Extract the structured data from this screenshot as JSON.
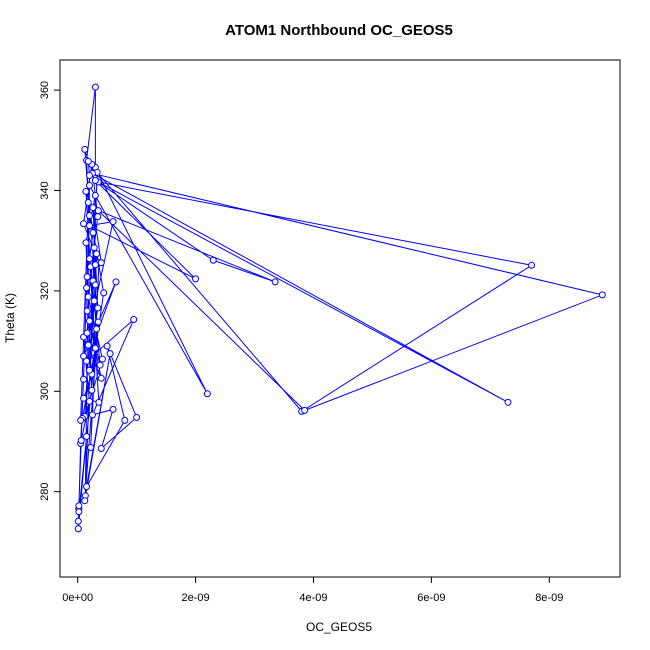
{
  "chart_data": {
    "type": "scatter",
    "title": "ATOM1 Northbound OC_GEOS5",
    "xlabel": "OC_GEOS5",
    "ylabel": "Theta (K)",
    "xlim": [
      -3e-10,
      9.2e-09
    ],
    "ylim": [
      263,
      366
    ],
    "x_ticks": [
      0,
      2e-09,
      4e-09,
      6e-09,
      8e-09
    ],
    "x_tick_labels": [
      "0e+00",
      "2e-09",
      "4e-09",
      "6e-09",
      "8e-09"
    ],
    "y_ticks": [
      280,
      300,
      320,
      340,
      360
    ],
    "y_tick_labels": [
      "280",
      "300",
      "320",
      "340",
      "360"
    ],
    "grid": false,
    "line_connected": true,
    "marker": "open-circle",
    "color": "#0000ff",
    "series": [
      {
        "values": [
          [
            1e-11,
            272.6
          ],
          [
            1e-11,
            274.1
          ],
          [
            2e-11,
            276.6
          ],
          [
            5e-11,
            289.6
          ],
          [
            1e-10,
            302.4
          ],
          [
            1.5e-10,
            320.6
          ],
          [
            2e-10,
            335.0
          ],
          [
            1.5e-10,
            346.0
          ],
          [
            3e-10,
            360.6
          ],
          [
            3e-10,
            344.6
          ],
          [
            2.2e-09,
            299.5
          ],
          [
            2e-10,
            341.0
          ],
          [
            1.3e-10,
            279.2
          ],
          [
            3.3e-10,
            343.6
          ],
          [
            3.8e-09,
            296.0
          ],
          [
            7.7e-09,
            325.1
          ],
          [
            3.5e-10,
            341.7
          ],
          [
            7.3e-09,
            297.8
          ],
          [
            2.5e-10,
            343.4
          ],
          [
            8.9e-09,
            319.2
          ],
          [
            3.85e-09,
            296.2
          ],
          [
            3.5e-10,
            336.0
          ],
          [
            3.35e-09,
            321.8
          ],
          [
            2.3e-09,
            326.1
          ],
          [
            3e-10,
            342.0
          ],
          [
            2e-09,
            322.4
          ],
          [
            2e-10,
            333.0
          ],
          [
            6e-10,
            333.8
          ],
          [
            1e-10,
            307.0
          ],
          [
            6.5e-10,
            321.8
          ],
          [
            1.5e-10,
            306.0
          ],
          [
            9.5e-10,
            314.3
          ],
          [
            2.5e-10,
            295.3
          ],
          [
            6e-10,
            296.4
          ],
          [
            4e-10,
            288.6
          ],
          [
            1e-09,
            294.8
          ],
          [
            5e-10,
            309.0
          ],
          [
            8e-10,
            294.2
          ],
          [
            1.5e-10,
            281.0
          ],
          [
            5.5e-10,
            307.5
          ],
          [
            1.2e-10,
            278.2
          ],
          [
            3.5e-10,
            313.8
          ],
          [
            2e-11,
            276.0
          ],
          [
            1e-11,
            272.6
          ],
          [
            1.5e-10,
            291.0
          ],
          [
            6e-11,
            290.2
          ],
          [
            2e-10,
            298.0
          ],
          [
            1e-10,
            310.8
          ],
          [
            4e-10,
            302.6
          ],
          [
            1.6e-10,
            316.0
          ],
          [
            2.8e-10,
            328.6
          ],
          [
            3.2e-10,
            312.4
          ],
          [
            2.2e-10,
            288.8
          ],
          [
            3.6e-10,
            325.6
          ],
          [
            1e-10,
            333.4
          ],
          [
            2.4e-10,
            345.2
          ],
          [
            3.4e-10,
            334.8
          ],
          [
            1.8e-10,
            318.8
          ],
          [
            4.2e-10,
            306.4
          ],
          [
            1.2e-10,
            295.0
          ],
          [
            2.6e-10,
            322.0
          ],
          [
            3e-10,
            339.0
          ],
          [
            1.4e-10,
            329.6
          ],
          [
            2e-10,
            314.0
          ],
          [
            3.8e-10,
            305.2
          ],
          [
            2.2e-10,
            324.8
          ],
          [
            1.6e-10,
            311.6
          ],
          [
            2.8e-10,
            318.0
          ],
          [
            3.2e-10,
            327.4
          ],
          [
            1.8e-10,
            337.6
          ],
          [
            4.4e-10,
            319.6
          ],
          [
            2.4e-10,
            303.4
          ],
          [
            1e-10,
            298.6
          ],
          [
            3.6e-10,
            297.8
          ],
          [
            2e-10,
            326.4
          ],
          [
            2.6e-10,
            331.6
          ],
          [
            1.4e-10,
            339.8
          ],
          [
            3e-10,
            308.6
          ],
          [
            8e-11,
            294.6
          ],
          [
            5e-11,
            294.2
          ],
          [
            2e-10,
            343.0
          ],
          [
            1.8e-10,
            345.8
          ],
          [
            1.2e-10,
            348.2
          ],
          [
            3e-10,
            321.2
          ],
          [
            2e-10,
            304.2
          ],
          [
            3.4e-10,
            316.6
          ],
          [
            2.6e-10,
            336.6
          ],
          [
            4e-10,
            325.6
          ],
          [
            3e-10,
            325.2
          ],
          [
            1.8e-10,
            309.2
          ],
          [
            2.4e-10,
            300.2
          ],
          [
            1.6e-10,
            322.8
          ],
          [
            2e-11,
            277.2
          ]
        ]
      }
    ]
  }
}
